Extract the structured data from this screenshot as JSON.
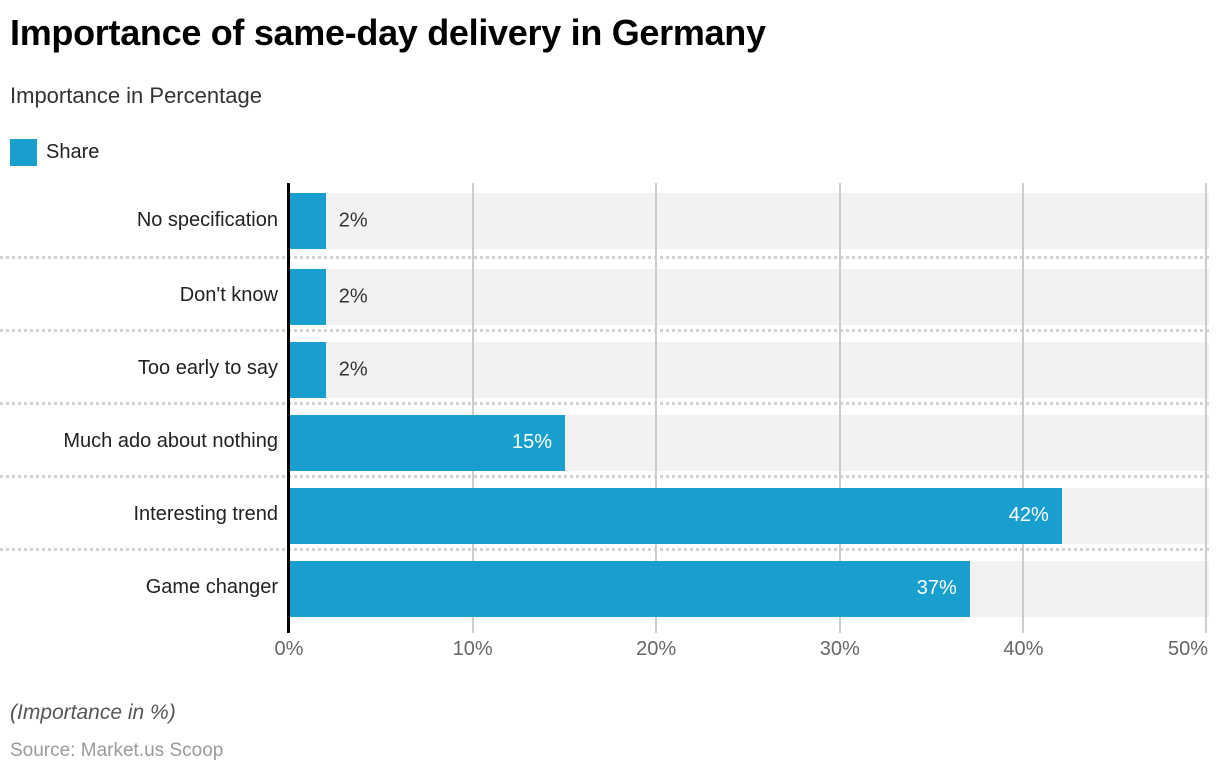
{
  "header": {
    "title": "Importance of same-day delivery in Germany",
    "subtitle": "Importance in Percentage"
  },
  "legend": {
    "position": "top-left",
    "items": [
      {
        "label": "Share",
        "color": "#189fce"
      }
    ]
  },
  "chart_data": {
    "type": "bar",
    "orientation": "horizontal",
    "title": "Importance of same-day delivery in Germany",
    "subtitle": "Importance in Percentage",
    "categories": [
      "No specification",
      "Don't know",
      "Too early to say",
      "Much ado about nothing",
      "Interesting trend",
      "Game changer"
    ],
    "series": [
      {
        "name": "Share",
        "values": [
          2,
          2,
          2,
          15,
          42,
          37
        ]
      }
    ],
    "value_labels": [
      "2%",
      "2%",
      "2%",
      "15%",
      "42%",
      "37%"
    ],
    "xlabel": "",
    "ylabel": "",
    "xlim": [
      0,
      50
    ],
    "x_ticks": [
      {
        "value": 0,
        "label": "0%"
      },
      {
        "value": 10,
        "label": "10%"
      },
      {
        "value": 20,
        "label": "20%"
      },
      {
        "value": 30,
        "label": "30%"
      },
      {
        "value": 40,
        "label": "40%"
      },
      {
        "value": 50,
        "label": "50%"
      }
    ],
    "grid": {
      "vertical": "solid",
      "horizontal_row_separators": "dotted"
    },
    "legend_position": "top-left"
  },
  "colors": {
    "bar": "#189fce",
    "track": "#f2f2f2",
    "grid": "#cccccc",
    "axis": "#000000",
    "value_inside": "#ffffff",
    "value_outside": "#333333"
  },
  "footer": {
    "note": "(Importance in %)",
    "source": "Source: Market.us Scoop"
  }
}
